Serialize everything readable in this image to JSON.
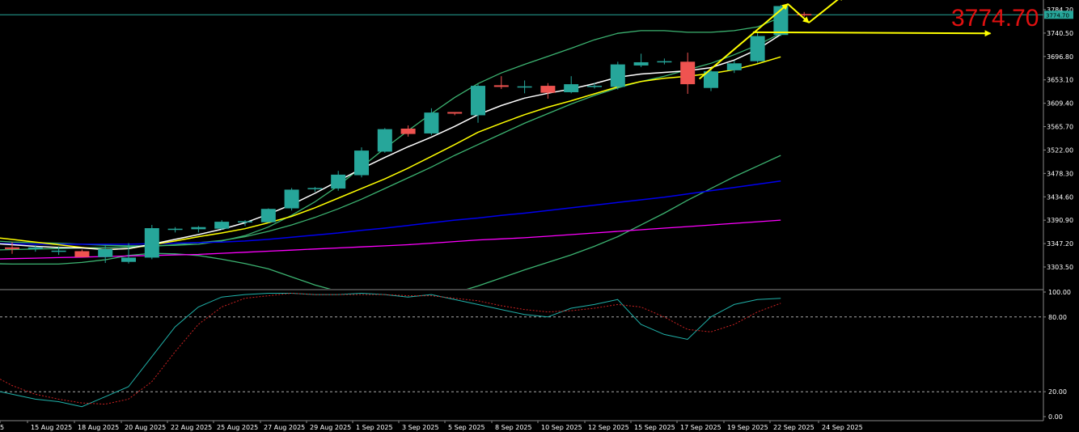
{
  "colors": {
    "background": "#000000",
    "bull": "#26a69a",
    "bear": "#ef5350",
    "bollinger": "#3cb371",
    "ma_white": "#ffffff",
    "ma_yellow": "#ffff00",
    "ma_blue": "#0000ee",
    "ma_magenta": "#ff00ff",
    "price_line": "#26a69a",
    "stoch_main": "#20b2aa",
    "stoch_signal": "#cc2222",
    "annotation": "#ffff00",
    "big_price": "#e01010"
  },
  "header": {
    "current_price_big": "3774.70",
    "price_tag": "3774.70",
    "top_tick": "3784.20"
  },
  "chart_data": [
    {
      "type": "candlestick",
      "title": "",
      "ylim": [
        3275,
        3800
      ],
      "y_ticks": [
        "3784.20",
        "3740.50",
        "3696.80",
        "3653.10",
        "3609.40",
        "3565.70",
        "3522.00",
        "3478.30",
        "3434.60",
        "3390.90",
        "3347.20",
        "3303.50"
      ],
      "x_ticks": [
        "5",
        "15 Aug 2025",
        "18 Aug 2025",
        "20 Aug 2025",
        "22 Aug 2025",
        "25 Aug 2025",
        "27 Aug 2025",
        "29 Aug 2025",
        "1 Sep 2025",
        "3 Sep 2025",
        "5 Sep 2025",
        "8 Sep 2025",
        "10 Sep 2025",
        "12 Sep 2025",
        "15 Sep 2025",
        "17 Sep 2025",
        "19 Sep 2025",
        "22 Sep 2025",
        "24 Sep 2025"
      ],
      "current_price": 3774.7,
      "candles": [
        {
          "o": 3340,
          "h": 3350,
          "l": 3328,
          "c": 3337
        },
        {
          "o": 3337,
          "h": 3344,
          "l": 3332,
          "c": 3340
        },
        {
          "o": 3334,
          "h": 3342,
          "l": 3326,
          "c": 3334
        },
        {
          "o": 3333,
          "h": 3336,
          "l": 3326,
          "c": 3322
        },
        {
          "o": 3322,
          "h": 3343,
          "l": 3311,
          "c": 3337
        },
        {
          "o": 3313,
          "h": 3348,
          "l": 3310,
          "c": 3321
        },
        {
          "o": 3321,
          "h": 3382,
          "l": 3318,
          "c": 3376
        },
        {
          "o": 3373,
          "h": 3378,
          "l": 3368,
          "c": 3375
        },
        {
          "o": 3374,
          "h": 3380,
          "l": 3368,
          "c": 3378
        },
        {
          "o": 3375,
          "h": 3391,
          "l": 3373,
          "c": 3388
        },
        {
          "o": 3387,
          "h": 3391,
          "l": 3380,
          "c": 3389
        },
        {
          "o": 3387,
          "h": 3413,
          "l": 3386,
          "c": 3412
        },
        {
          "o": 3413,
          "h": 3451,
          "l": 3409,
          "c": 3448
        },
        {
          "o": 3449,
          "h": 3453,
          "l": 3444,
          "c": 3451
        },
        {
          "o": 3450,
          "h": 3483,
          "l": 3446,
          "c": 3476
        },
        {
          "o": 3475,
          "h": 3527,
          "l": 3471,
          "c": 3521
        },
        {
          "o": 3519,
          "h": 3563,
          "l": 3517,
          "c": 3561
        },
        {
          "o": 3562,
          "h": 3568,
          "l": 3547,
          "c": 3552
        },
        {
          "o": 3553,
          "h": 3600,
          "l": 3550,
          "c": 3592
        },
        {
          "o": 3593,
          "h": 3593,
          "l": 3587,
          "c": 3590
        },
        {
          "o": 3587,
          "h": 3645,
          "l": 3573,
          "c": 3642
        },
        {
          "o": 3643,
          "h": 3660,
          "l": 3636,
          "c": 3640
        },
        {
          "o": 3640,
          "h": 3652,
          "l": 3628,
          "c": 3641
        },
        {
          "o": 3642,
          "h": 3647,
          "l": 3618,
          "c": 3629
        },
        {
          "o": 3630,
          "h": 3660,
          "l": 3628,
          "c": 3645
        },
        {
          "o": 3642,
          "h": 3647,
          "l": 3637,
          "c": 3642
        },
        {
          "o": 3640,
          "h": 3687,
          "l": 3635,
          "c": 3682
        },
        {
          "o": 3680,
          "h": 3702,
          "l": 3677,
          "c": 3686
        },
        {
          "o": 3686,
          "h": 3693,
          "l": 3682,
          "c": 3688
        },
        {
          "o": 3687,
          "h": 3704,
          "l": 3627,
          "c": 3645
        },
        {
          "o": 3638,
          "h": 3672,
          "l": 3632,
          "c": 3669
        },
        {
          "o": 3671,
          "h": 3689,
          "l": 3666,
          "c": 3684
        },
        {
          "o": 3688,
          "h": 3742,
          "l": 3685,
          "c": 3735
        },
        {
          "o": 3737,
          "h": 3793,
          "l": 3735,
          "c": 3791
        },
        {
          "o": 3776,
          "h": 3780,
          "l": 3771,
          "c": 3775
        }
      ],
      "indicators": {
        "bb_upper": [
          3353,
          3350,
          3349,
          3348,
          3346,
          3344,
          3343,
          3343,
          3344,
          3346,
          3352,
          3362,
          3378,
          3400,
          3425,
          3455,
          3490,
          3525,
          3558,
          3590,
          3620,
          3646,
          3666,
          3682,
          3697,
          3712,
          3728,
          3740,
          3745,
          3745,
          3742,
          3742,
          3745,
          3752,
          3770
        ],
        "bb_middle": [
          3335,
          3336,
          3337,
          3338,
          3339,
          3340,
          3341,
          3342,
          3345,
          3349,
          3353,
          3360,
          3370,
          3382,
          3396,
          3412,
          3430,
          3450,
          3470,
          3490,
          3512,
          3532,
          3552,
          3572,
          3590,
          3608,
          3624,
          3638,
          3650,
          3660,
          3672,
          3684,
          3700,
          3718,
          3740
        ],
        "bb_lower": [
          3310,
          3309,
          3309,
          3309,
          3312,
          3317,
          3325,
          3329,
          3328,
          3325,
          3318,
          3310,
          3300,
          3285,
          3270,
          3258,
          3245,
          3240,
          3240,
          3245,
          3255,
          3268,
          3283,
          3298,
          3312,
          3326,
          3342,
          3360,
          3382,
          3404,
          3428,
          3450,
          3472,
          3492,
          3512
        ],
        "ma_white": [
          3348,
          3345,
          3342,
          3340,
          3339,
          3336,
          3338,
          3346,
          3355,
          3364,
          3374,
          3386,
          3402,
          3420,
          3441,
          3464,
          3487,
          3508,
          3528,
          3546,
          3566,
          3588,
          3605,
          3619,
          3628,
          3636,
          3646,
          3658,
          3664,
          3667,
          3670,
          3676,
          3690,
          3710,
          3738
        ],
        "ma_yellow": [
          3360,
          3355,
          3350,
          3345,
          3340,
          3336,
          3338,
          3345,
          3352,
          3360,
          3367,
          3375,
          3386,
          3398,
          3414,
          3432,
          3450,
          3468,
          3488,
          3510,
          3532,
          3555,
          3572,
          3588,
          3602,
          3614,
          3627,
          3640,
          3650,
          3656,
          3660,
          3665,
          3672,
          3683,
          3696
        ],
        "ma_blue": [
          3348,
          3347,
          3346,
          3346,
          3346,
          3346,
          3346,
          3347,
          3348,
          3349,
          3350,
          3352,
          3355,
          3359,
          3363,
          3367,
          3372,
          3376,
          3381,
          3386,
          3391,
          3395,
          3400,
          3404,
          3409,
          3414,
          3419,
          3424,
          3429,
          3434,
          3440,
          3446,
          3452,
          3458,
          3464
        ],
        "ma_magenta": [
          3318,
          3319,
          3320,
          3321,
          3322,
          3323,
          3324,
          3325,
          3326,
          3327,
          3329,
          3331,
          3333,
          3335,
          3337,
          3339,
          3341,
          3343,
          3345,
          3348,
          3351,
          3354,
          3356,
          3358,
          3361,
          3364,
          3367,
          3370,
          3373,
          3376,
          3379,
          3382,
          3385,
          3388,
          3391
        ]
      },
      "annotations": [
        {
          "type": "arrow",
          "from": [
            29.5,
            3655
          ],
          "to": [
            33.3,
            3795
          ]
        },
        {
          "type": "arrow",
          "from": [
            33.3,
            3795
          ],
          "to": [
            34.2,
            3760
          ]
        },
        {
          "type": "arrow",
          "from": [
            34.2,
            3760
          ],
          "to": [
            35.7,
            3812
          ]
        },
        {
          "type": "arrow",
          "from": [
            31.8,
            3742
          ],
          "to": [
            42.0,
            3740
          ]
        }
      ]
    },
    {
      "type": "line",
      "title": "",
      "ylim": [
        0,
        100
      ],
      "y_ticks": [
        "100.00",
        "80.00",
        "20.00",
        "0.00"
      ],
      "levels": [
        80,
        20
      ],
      "series": [
        {
          "role": "main",
          "values": [
            22,
            18,
            14,
            12,
            8,
            16,
            24,
            48,
            72,
            88,
            96,
            98,
            99,
            99,
            98,
            98,
            99,
            98,
            96,
            98,
            94,
            90,
            86,
            82,
            80,
            87,
            90,
            94,
            74,
            66,
            62,
            80,
            90,
            94,
            95
          ]
        },
        {
          "role": "signal",
          "values": [
            35,
            25,
            18,
            14,
            11,
            10,
            14,
            28,
            52,
            74,
            88,
            95,
            97,
            99,
            98,
            98,
            98,
            98,
            97,
            97,
            95,
            93,
            89,
            86,
            84,
            85,
            87,
            90,
            88,
            80,
            70,
            68,
            74,
            84,
            91
          ]
        }
      ]
    }
  ]
}
